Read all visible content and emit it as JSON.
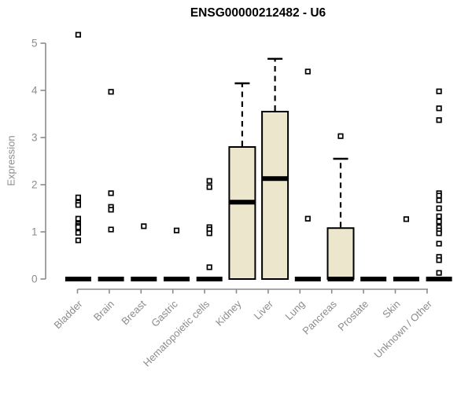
{
  "chart_data": {
    "type": "boxplot",
    "title": "ENSG00000212482 - U6",
    "xlabel": "",
    "ylabel": "Expression",
    "ylim": [
      0,
      5.35
    ],
    "yticks": [
      0,
      1,
      2,
      3,
      4,
      5
    ],
    "grid": "off",
    "legend": "none",
    "categories": [
      "Bladder",
      "Brain",
      "Breast",
      "Gastric",
      "Hematopoietic cells",
      "Kidney",
      "Liver",
      "Lung",
      "Pancreas",
      "Prostate",
      "Skin",
      "Unknown / Other"
    ],
    "series": [
      {
        "category": "Bladder",
        "whisker_low": 0,
        "q1": 0,
        "median": 0,
        "q3": 0,
        "whisker_high": 0,
        "outliers": [
          5.18,
          1.73,
          1.62,
          1.57,
          1.28,
          1.17,
          1.13,
          1.1,
          0.98,
          0.82
        ]
      },
      {
        "category": "Brain",
        "whisker_low": 0,
        "q1": 0,
        "median": 0,
        "q3": 0,
        "whisker_high": 0,
        "outliers": [
          3.97,
          1.82,
          1.53,
          1.47,
          1.05
        ]
      },
      {
        "category": "Breast",
        "whisker_low": 0,
        "q1": 0,
        "median": 0,
        "q3": 0,
        "whisker_high": 0,
        "outliers": [
          1.12
        ]
      },
      {
        "category": "Gastric",
        "whisker_low": 0,
        "q1": 0,
        "median": 0,
        "q3": 0,
        "whisker_high": 0,
        "outliers": [
          1.03
        ]
      },
      {
        "category": "Hematopoietic cells",
        "whisker_low": 0,
        "q1": 0,
        "median": 0,
        "q3": 0,
        "whisker_high": 0,
        "outliers": [
          2.08,
          1.95,
          1.1,
          1.05,
          0.97,
          0.25
        ]
      },
      {
        "category": "Kidney",
        "whisker_low": 0,
        "q1": 0,
        "median": 1.63,
        "q3": 2.8,
        "whisker_high": 4.15,
        "outliers": []
      },
      {
        "category": "Liver",
        "whisker_low": 0,
        "q1": 0,
        "median": 2.13,
        "q3": 3.55,
        "whisker_high": 4.67,
        "outliers": []
      },
      {
        "category": "Lung",
        "whisker_low": 0,
        "q1": 0,
        "median": 0,
        "q3": 0,
        "whisker_high": 0,
        "outliers": [
          4.4,
          1.28
        ]
      },
      {
        "category": "Pancreas",
        "whisker_low": 0,
        "q1": 0,
        "median": 0,
        "q3": 1.08,
        "whisker_high": 2.55,
        "outliers": [
          3.03
        ]
      },
      {
        "category": "Prostate",
        "whisker_low": 0,
        "q1": 0,
        "median": 0,
        "q3": 0,
        "whisker_high": 0,
        "outliers": []
      },
      {
        "category": "Skin",
        "whisker_low": 0,
        "q1": 0,
        "median": 0,
        "q3": 0,
        "whisker_high": 0,
        "outliers": [
          1.27
        ]
      },
      {
        "category": "Unknown / Other",
        "whisker_low": 0,
        "q1": 0,
        "median": 0,
        "q3": 0,
        "whisker_high": 0,
        "outliers": [
          3.98,
          3.62,
          3.37,
          1.82,
          1.77,
          1.67,
          1.5,
          1.33,
          1.22,
          1.1,
          1.03,
          0.97,
          0.75,
          0.47,
          0.4,
          0.13
        ]
      }
    ],
    "colors": {
      "box_fill": "#ece6cd",
      "box_border": "#000000",
      "median": "#000000",
      "whisker": "#000000",
      "outlier_stroke": "#000000",
      "outlier_fill": "#ffffff",
      "axis": "#8c8c8c",
      "tick_label": "#8c8c8c",
      "title": "#000000",
      "background": "#ffffff"
    }
  }
}
